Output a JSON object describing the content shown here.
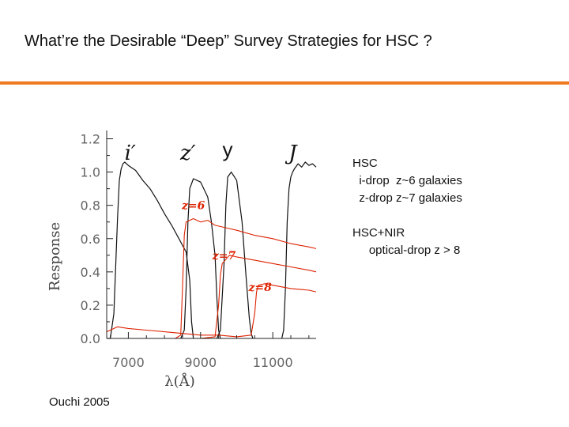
{
  "slide": {
    "title": "What’re the Desirable “Deep” Survey Strategies for HSC ?",
    "accent_color": "#f07a20",
    "notes": [
      "HSC",
      "  i-drop  z~6 galaxies",
      "  z-drop z~7 galaxies",
      "HSC+NIR",
      "     optical-drop z > 8"
    ],
    "citation": "Ouchi  2005"
  },
  "chart_data": {
    "type": "line",
    "title": "",
    "xlabel": "λ(Å)",
    "ylabel": "Response",
    "xlim": [
      6400,
      12200
    ],
    "ylim": [
      0,
      1.25
    ],
    "xticks": [
      7000,
      9000,
      11000
    ],
    "xtick_labels": [
      "7000",
      "9000",
      "11000"
    ],
    "yticks": [
      0.0,
      0.2,
      0.4,
      0.6,
      0.8,
      1.0,
      1.2
    ],
    "ytick_labels": [
      "0.0",
      "0.2",
      "0.4",
      "0.6",
      "0.8",
      "1.0",
      "1.2"
    ],
    "grid": false,
    "filter_labels": [
      {
        "text": "i′",
        "x": 7050,
        "y": 1.14
      },
      {
        "text": "z′",
        "x": 8650,
        "y": 1.14
      },
      {
        "text": "y",
        "x": 9750,
        "y": 1.16
      },
      {
        "text": "J",
        "x": 11550,
        "y": 1.14
      }
    ],
    "spectrum_labels": [
      {
        "text": "z=6",
        "x": 8800,
        "y": 0.8
      },
      {
        "text": "z=7",
        "x": 9650,
        "y": 0.5
      },
      {
        "text": "z=8",
        "x": 10650,
        "y": 0.31
      }
    ],
    "series": [
      {
        "color": "#111111",
        "x": [
          6400,
          6500,
          6600,
          6700,
          6750,
          6800,
          6850,
          6900,
          7000,
          7200,
          7400,
          7600,
          7800,
          8000,
          8200,
          8400,
          8600,
          8700,
          8750,
          8800
        ],
        "y": [
          0.0,
          0.0,
          0.15,
          0.72,
          0.95,
          1.02,
          1.05,
          1.06,
          1.04,
          1.01,
          0.95,
          0.9,
          0.83,
          0.75,
          0.68,
          0.6,
          0.52,
          0.35,
          0.1,
          0.0
        ]
      },
      {
        "color": "#111111",
        "x": [
          8450,
          8550,
          8600,
          8650,
          8700,
          8800,
          9000,
          9200,
          9300,
          9400,
          9450,
          9500,
          9550
        ],
        "y": [
          0.0,
          0.05,
          0.3,
          0.7,
          0.9,
          0.96,
          0.94,
          0.85,
          0.7,
          0.5,
          0.25,
          0.05,
          0.0
        ]
      },
      {
        "color": "#111111",
        "x": [
          9450,
          9550,
          9650,
          9700,
          9750,
          9850,
          10000,
          10150,
          10250,
          10350,
          10400,
          10450
        ],
        "y": [
          0.0,
          0.05,
          0.45,
          0.8,
          0.97,
          1.0,
          0.95,
          0.7,
          0.4,
          0.12,
          0.03,
          0.0
        ]
      },
      {
        "color": "#111111",
        "x": [
          11250,
          11300,
          11350,
          11400,
          11450,
          11500,
          11550,
          11600,
          11700,
          11800,
          11900,
          12000,
          12100,
          12200
        ],
        "y": [
          0.0,
          0.05,
          0.3,
          0.7,
          0.9,
          0.97,
          1.0,
          1.02,
          1.05,
          1.03,
          1.06,
          1.04,
          1.05,
          1.03
        ]
      },
      {
        "color": "#dd2200",
        "x": [
          6400,
          7000,
          7500,
          8000,
          8300,
          8450,
          8500,
          8550,
          8600,
          8800,
          9000,
          9200,
          9400,
          9600,
          9800,
          10000,
          10500,
          11000,
          11500,
          12000,
          12200
        ],
        "y": [
          0.0,
          0.0,
          0.0,
          0.0,
          0.0,
          0.02,
          0.3,
          0.62,
          0.7,
          0.72,
          0.7,
          0.71,
          0.68,
          0.67,
          0.66,
          0.65,
          0.62,
          0.6,
          0.57,
          0.55,
          0.54
        ]
      },
      {
        "color": "#dd2200",
        "x": [
          6400,
          8000,
          9000,
          9400,
          9500,
          9550,
          9600,
          9800,
          10000,
          10500,
          11000,
          11500,
          12000,
          12200
        ],
        "y": [
          0.0,
          0.0,
          0.0,
          0.01,
          0.2,
          0.38,
          0.45,
          0.5,
          0.49,
          0.47,
          0.45,
          0.43,
          0.41,
          0.4
        ]
      },
      {
        "color": "#dd2200",
        "x": [
          6400,
          6700,
          7000,
          7500,
          8000,
          8500,
          9000,
          9500,
          10000,
          10400,
          10500,
          10550,
          10600,
          10800,
          11000,
          11500,
          12000,
          12200
        ],
        "y": [
          0.04,
          0.07,
          0.06,
          0.05,
          0.04,
          0.03,
          0.02,
          0.02,
          0.01,
          0.02,
          0.15,
          0.28,
          0.32,
          0.33,
          0.32,
          0.3,
          0.29,
          0.28
        ]
      }
    ]
  }
}
